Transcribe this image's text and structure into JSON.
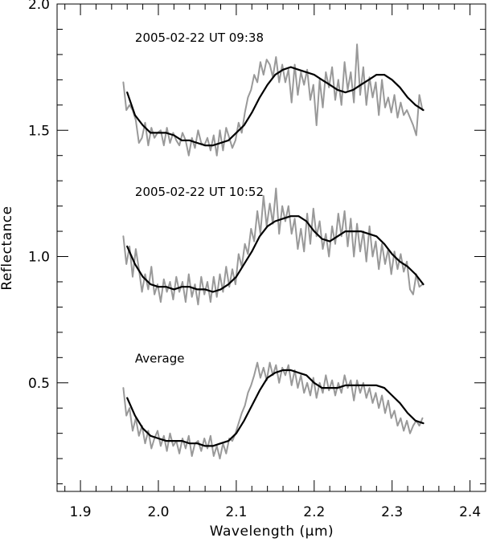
{
  "chart_data": {
    "type": "line",
    "xlabel": "Wavelength (μm)",
    "ylabel": "Reflectance",
    "xlim": [
      1.87,
      2.42
    ],
    "ylim": [
      0.07,
      2.0
    ],
    "x_ticks": [
      1.9,
      2.0,
      2.1,
      2.2,
      2.3,
      2.4
    ],
    "x_tick_labels": [
      "1.9",
      "2.0",
      "2.1",
      "2.2",
      "2.3",
      "2.4"
    ],
    "y_ticks": [
      0.5,
      1.0,
      1.5,
      2.0
    ],
    "y_tick_labels": [
      "0.5",
      "1.0",
      "1.5",
      "2.0"
    ],
    "colors": {
      "raw": "#999999",
      "smooth": "#000000"
    },
    "annotations": [
      {
        "text": "2005-02-22 UT 09:38",
        "x": 1.97,
        "y": 1.85
      },
      {
        "text": "2005-02-22 UT 10:52",
        "x": 1.97,
        "y": 1.24
      },
      {
        "text": "Average",
        "x": 1.97,
        "y": 0.58
      }
    ],
    "series": [
      {
        "kind": "raw",
        "x": [
          1.955,
          1.959,
          1.963,
          1.967,
          1.971,
          1.975,
          1.979,
          1.983,
          1.987,
          1.991,
          1.995,
          1.999,
          2.003,
          2.007,
          2.011,
          2.015,
          2.019,
          2.023,
          2.027,
          2.031,
          2.035,
          2.039,
          2.043,
          2.047,
          2.051,
          2.055,
          2.059,
          2.063,
          2.067,
          2.071,
          2.075,
          2.079,
          2.083,
          2.087,
          2.091,
          2.095,
          2.099,
          2.103,
          2.107,
          2.111,
          2.115,
          2.119,
          2.123,
          2.127,
          2.131,
          2.135,
          2.139,
          2.143,
          2.147,
          2.151,
          2.155,
          2.159,
          2.163,
          2.167,
          2.171,
          2.175,
          2.179,
          2.183,
          2.187,
          2.191,
          2.195,
          2.199,
          2.203,
          2.207,
          2.211,
          2.215,
          2.219,
          2.223,
          2.227,
          2.231,
          2.235,
          2.239,
          2.243,
          2.247,
          2.251,
          2.255,
          2.259,
          2.263,
          2.267,
          2.271,
          2.275,
          2.279,
          2.283,
          2.287,
          2.291,
          2.295,
          2.299,
          2.303,
          2.307,
          2.311,
          2.315,
          2.319,
          2.323,
          2.327,
          2.331,
          2.335,
          2.339
        ],
        "y": [
          1.69,
          1.58,
          1.6,
          1.58,
          1.54,
          1.45,
          1.47,
          1.53,
          1.44,
          1.51,
          1.47,
          1.49,
          1.5,
          1.44,
          1.51,
          1.45,
          1.49,
          1.46,
          1.44,
          1.49,
          1.46,
          1.4,
          1.47,
          1.43,
          1.5,
          1.45,
          1.44,
          1.47,
          1.42,
          1.48,
          1.4,
          1.5,
          1.42,
          1.51,
          1.47,
          1.43,
          1.46,
          1.53,
          1.49,
          1.57,
          1.63,
          1.66,
          1.72,
          1.69,
          1.77,
          1.72,
          1.78,
          1.76,
          1.71,
          1.79,
          1.69,
          1.76,
          1.69,
          1.74,
          1.61,
          1.76,
          1.64,
          1.73,
          1.68,
          1.74,
          1.62,
          1.68,
          1.52,
          1.7,
          1.59,
          1.73,
          1.67,
          1.75,
          1.62,
          1.7,
          1.6,
          1.77,
          1.66,
          1.73,
          1.61,
          1.84,
          1.64,
          1.75,
          1.6,
          1.71,
          1.63,
          1.69,
          1.56,
          1.7,
          1.59,
          1.63,
          1.57,
          1.64,
          1.55,
          1.61,
          1.56,
          1.58,
          1.55,
          1.52,
          1.48,
          1.64,
          1.58
        ]
      },
      {
        "kind": "smooth",
        "x": [
          1.96,
          1.97,
          1.98,
          1.99,
          2.0,
          2.01,
          2.02,
          2.03,
          2.04,
          2.05,
          2.06,
          2.07,
          2.08,
          2.09,
          2.1,
          2.11,
          2.12,
          2.13,
          2.14,
          2.15,
          2.16,
          2.17,
          2.18,
          2.19,
          2.2,
          2.21,
          2.22,
          2.23,
          2.24,
          2.25,
          2.26,
          2.27,
          2.28,
          2.29,
          2.3,
          2.31,
          2.32,
          2.33,
          2.34
        ],
        "y": [
          1.65,
          1.56,
          1.52,
          1.49,
          1.49,
          1.49,
          1.48,
          1.46,
          1.46,
          1.45,
          1.44,
          1.44,
          1.45,
          1.46,
          1.49,
          1.52,
          1.57,
          1.63,
          1.68,
          1.72,
          1.74,
          1.75,
          1.74,
          1.73,
          1.72,
          1.7,
          1.68,
          1.66,
          1.65,
          1.66,
          1.68,
          1.7,
          1.72,
          1.72,
          1.7,
          1.67,
          1.63,
          1.6,
          1.58
        ]
      },
      {
        "kind": "raw",
        "x": [
          1.955,
          1.959,
          1.963,
          1.967,
          1.971,
          1.975,
          1.979,
          1.983,
          1.987,
          1.991,
          1.995,
          1.999,
          2.003,
          2.007,
          2.011,
          2.015,
          2.019,
          2.023,
          2.027,
          2.031,
          2.035,
          2.039,
          2.043,
          2.047,
          2.051,
          2.055,
          2.059,
          2.063,
          2.067,
          2.071,
          2.075,
          2.079,
          2.083,
          2.087,
          2.091,
          2.095,
          2.099,
          2.103,
          2.107,
          2.111,
          2.115,
          2.119,
          2.123,
          2.127,
          2.131,
          2.135,
          2.139,
          2.143,
          2.147,
          2.151,
          2.155,
          2.159,
          2.163,
          2.167,
          2.171,
          2.175,
          2.179,
          2.183,
          2.187,
          2.191,
          2.195,
          2.199,
          2.203,
          2.207,
          2.211,
          2.215,
          2.219,
          2.223,
          2.227,
          2.231,
          2.235,
          2.239,
          2.243,
          2.247,
          2.251,
          2.255,
          2.259,
          2.263,
          2.267,
          2.271,
          2.275,
          2.279,
          2.283,
          2.287,
          2.291,
          2.295,
          2.299,
          2.303,
          2.307,
          2.311,
          2.315,
          2.319,
          2.323,
          2.327,
          2.331,
          2.335,
          2.339
        ],
        "y": [
          1.08,
          0.97,
          1.04,
          0.92,
          1.03,
          0.95,
          0.86,
          0.93,
          0.87,
          0.96,
          0.85,
          0.89,
          0.82,
          0.91,
          0.86,
          0.9,
          0.83,
          0.92,
          0.86,
          0.9,
          0.82,
          0.93,
          0.84,
          0.89,
          0.81,
          0.92,
          0.85,
          0.9,
          0.82,
          0.92,
          0.84,
          0.93,
          0.86,
          0.96,
          0.88,
          0.95,
          0.89,
          1.01,
          0.96,
          1.05,
          1.01,
          1.11,
          1.06,
          1.18,
          1.09,
          1.24,
          1.12,
          1.21,
          1.13,
          1.27,
          1.09,
          1.2,
          1.14,
          1.2,
          1.09,
          1.15,
          1.03,
          1.11,
          1.02,
          1.17,
          1.05,
          1.19,
          1.08,
          1.14,
          1.03,
          1.09,
          1.0,
          1.12,
          1.05,
          1.17,
          1.08,
          1.18,
          1.04,
          1.15,
          1.0,
          1.13,
          1.02,
          1.1,
          0.98,
          1.12,
          1.0,
          1.06,
          0.95,
          1.05,
          0.97,
          1.03,
          0.93,
          1.02,
          0.95,
          1.01,
          0.94,
          0.98,
          0.87,
          0.85,
          0.93,
          0.88,
          0.89
        ]
      },
      {
        "kind": "smooth",
        "x": [
          1.96,
          1.97,
          1.98,
          1.99,
          2.0,
          2.01,
          2.02,
          2.03,
          2.04,
          2.05,
          2.06,
          2.07,
          2.08,
          2.09,
          2.1,
          2.11,
          2.12,
          2.13,
          2.14,
          2.15,
          2.16,
          2.17,
          2.18,
          2.19,
          2.2,
          2.21,
          2.22,
          2.23,
          2.24,
          2.25,
          2.26,
          2.27,
          2.28,
          2.29,
          2.3,
          2.31,
          2.32,
          2.33,
          2.34
        ],
        "y": [
          1.04,
          0.97,
          0.92,
          0.89,
          0.88,
          0.88,
          0.87,
          0.88,
          0.88,
          0.87,
          0.87,
          0.86,
          0.87,
          0.89,
          0.92,
          0.97,
          1.02,
          1.08,
          1.12,
          1.14,
          1.15,
          1.16,
          1.16,
          1.14,
          1.1,
          1.07,
          1.06,
          1.08,
          1.1,
          1.1,
          1.1,
          1.09,
          1.08,
          1.05,
          1.01,
          0.98,
          0.96,
          0.93,
          0.89
        ]
      },
      {
        "kind": "raw",
        "x": [
          1.955,
          1.959,
          1.963,
          1.967,
          1.971,
          1.975,
          1.979,
          1.983,
          1.987,
          1.991,
          1.995,
          1.999,
          2.003,
          2.007,
          2.011,
          2.015,
          2.019,
          2.023,
          2.027,
          2.031,
          2.035,
          2.039,
          2.043,
          2.047,
          2.051,
          2.055,
          2.059,
          2.063,
          2.067,
          2.071,
          2.075,
          2.079,
          2.083,
          2.087,
          2.091,
          2.095,
          2.099,
          2.103,
          2.107,
          2.111,
          2.115,
          2.119,
          2.123,
          2.127,
          2.131,
          2.135,
          2.139,
          2.143,
          2.147,
          2.151,
          2.155,
          2.159,
          2.163,
          2.167,
          2.171,
          2.175,
          2.179,
          2.183,
          2.187,
          2.191,
          2.195,
          2.199,
          2.203,
          2.207,
          2.211,
          2.215,
          2.219,
          2.223,
          2.227,
          2.231,
          2.235,
          2.239,
          2.243,
          2.247,
          2.251,
          2.255,
          2.259,
          2.263,
          2.267,
          2.271,
          2.275,
          2.279,
          2.283,
          2.287,
          2.291,
          2.295,
          2.299,
          2.303,
          2.307,
          2.311,
          2.315,
          2.319,
          2.323,
          2.327,
          2.331,
          2.335,
          2.339
        ],
        "y": [
          0.48,
          0.37,
          0.4,
          0.31,
          0.36,
          0.29,
          0.33,
          0.26,
          0.31,
          0.24,
          0.28,
          0.31,
          0.25,
          0.29,
          0.23,
          0.3,
          0.25,
          0.27,
          0.22,
          0.28,
          0.24,
          0.29,
          0.21,
          0.26,
          0.27,
          0.23,
          0.28,
          0.24,
          0.29,
          0.21,
          0.25,
          0.2,
          0.26,
          0.22,
          0.28,
          0.27,
          0.3,
          0.34,
          0.38,
          0.41,
          0.46,
          0.49,
          0.53,
          0.58,
          0.52,
          0.56,
          0.51,
          0.58,
          0.53,
          0.57,
          0.5,
          0.56,
          0.53,
          0.57,
          0.49,
          0.55,
          0.48,
          0.53,
          0.46,
          0.5,
          0.45,
          0.52,
          0.44,
          0.5,
          0.46,
          0.53,
          0.47,
          0.51,
          0.45,
          0.5,
          0.46,
          0.53,
          0.48,
          0.51,
          0.43,
          0.51,
          0.46,
          0.5,
          0.44,
          0.48,
          0.42,
          0.46,
          0.4,
          0.45,
          0.38,
          0.43,
          0.36,
          0.39,
          0.33,
          0.36,
          0.31,
          0.35,
          0.3,
          0.33,
          0.35,
          0.33,
          0.36
        ]
      },
      {
        "kind": "smooth",
        "x": [
          1.96,
          1.97,
          1.98,
          1.99,
          2.0,
          2.01,
          2.02,
          2.03,
          2.04,
          2.05,
          2.06,
          2.07,
          2.08,
          2.09,
          2.1,
          2.11,
          2.12,
          2.13,
          2.14,
          2.15,
          2.16,
          2.17,
          2.18,
          2.19,
          2.2,
          2.21,
          2.22,
          2.23,
          2.24,
          2.25,
          2.26,
          2.27,
          2.28,
          2.29,
          2.3,
          2.31,
          2.32,
          2.33,
          2.34
        ],
        "y": [
          0.44,
          0.37,
          0.32,
          0.29,
          0.28,
          0.27,
          0.27,
          0.27,
          0.26,
          0.26,
          0.25,
          0.25,
          0.26,
          0.27,
          0.3,
          0.35,
          0.41,
          0.47,
          0.52,
          0.54,
          0.55,
          0.55,
          0.54,
          0.53,
          0.5,
          0.48,
          0.48,
          0.48,
          0.49,
          0.49,
          0.49,
          0.49,
          0.49,
          0.48,
          0.45,
          0.42,
          0.38,
          0.35,
          0.34
        ]
      }
    ]
  }
}
